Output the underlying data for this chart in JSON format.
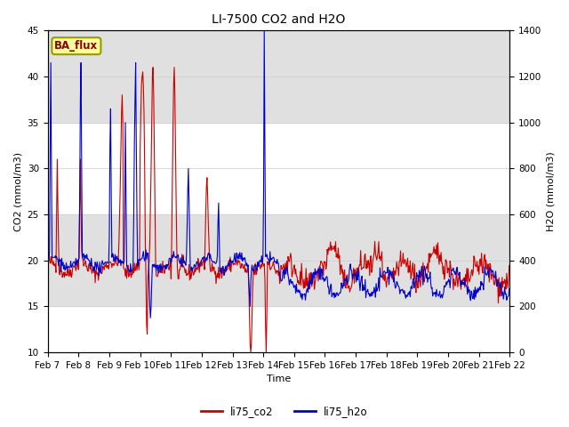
{
  "title": "LI-7500 CO2 and H2O",
  "xlabel": "Time",
  "ylabel_left": "CO2 (mmol/m3)",
  "ylabel_right": "H2O (mmol/m3)",
  "ylim_left": [
    10,
    45
  ],
  "ylim_right": [
    0,
    1400
  ],
  "yticks_left": [
    10,
    15,
    20,
    25,
    30,
    35,
    40,
    45
  ],
  "yticks_right": [
    0,
    200,
    400,
    600,
    800,
    1000,
    1200,
    1400
  ],
  "date_labels": [
    "Feb 7",
    "Feb 8",
    "Feb 9",
    "Feb 10",
    "Feb 11",
    "Feb 12",
    "Feb 13",
    "Feb 14",
    "Feb 15",
    "Feb 16",
    "Feb 17",
    "Feb 18",
    "Feb 19",
    "Feb 20",
    "Feb 21",
    "Feb 22"
  ],
  "co2_color": "#cc0000",
  "h2o_color": "#0000cc",
  "legend_entries": [
    "li75_co2",
    "li75_h2o"
  ],
  "badge_text": "BA_flux",
  "badge_facecolor": "#ffff99",
  "badge_edgecolor": "#999900",
  "badge_textcolor": "#880000",
  "band_color": "#e0e0e0",
  "background_color": "#ffffff",
  "title_fontsize": 10,
  "axis_fontsize": 8,
  "tick_fontsize": 7.5
}
